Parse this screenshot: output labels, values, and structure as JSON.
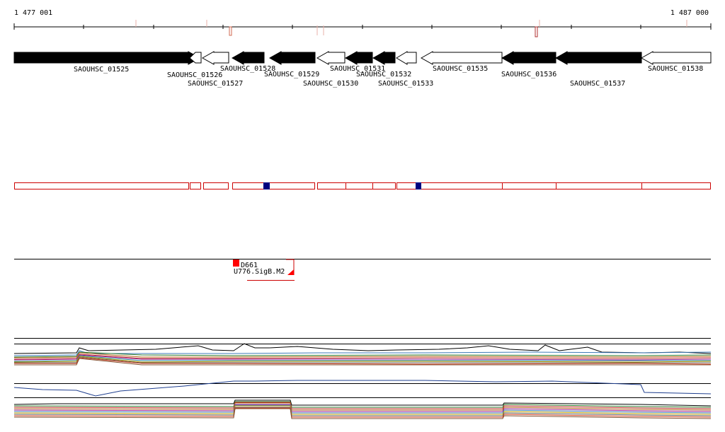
{
  "ruler": {
    "start_label": "1 477 001",
    "end_label": "1 487 000"
  },
  "genes": [
    {
      "id": "SAOUHSC_01525",
      "strand": "forward",
      "filled": true
    },
    {
      "id": "SAOUHSC_01526",
      "strand": "reverse",
      "filled": false
    },
    {
      "id": "SAOUHSC_01527",
      "strand": "reverse",
      "filled": false
    },
    {
      "id": "SAOUHSC_01528",
      "strand": "reverse",
      "filled": true
    },
    {
      "id": "SAOUHSC_01529",
      "strand": "reverse",
      "filled": true
    },
    {
      "id": "SAOUHSC_01530",
      "strand": "reverse",
      "filled": false
    },
    {
      "id": "SAOUHSC_01531",
      "strand": "reverse",
      "filled": true
    },
    {
      "id": "SAOUHSC_01532",
      "strand": "reverse",
      "filled": true
    },
    {
      "id": "SAOUHSC_01533",
      "strand": "reverse",
      "filled": false
    },
    {
      "id": "SAOUHSC_01535",
      "strand": "reverse",
      "filled": false
    },
    {
      "id": "SAOUHSC_01536",
      "strand": "reverse",
      "filled": true
    },
    {
      "id": "SAOUHSC_01537",
      "strand": "reverse",
      "filled": true
    },
    {
      "id": "SAOUHSC_01538",
      "strand": "reverse",
      "filled": false
    }
  ],
  "annotations": {
    "feature_label": "D661",
    "motif_label": "U776.SigB.M2"
  },
  "colors": {
    "gene_fill": "#000000",
    "gene_outline": "#000000",
    "region_outline": "#cc0000",
    "region_marker": "#00007f",
    "feature_marker": "#ff0000",
    "ruler_tick_light": "#e8b0a8",
    "ruler_tick_dark": "#b03030"
  }
}
